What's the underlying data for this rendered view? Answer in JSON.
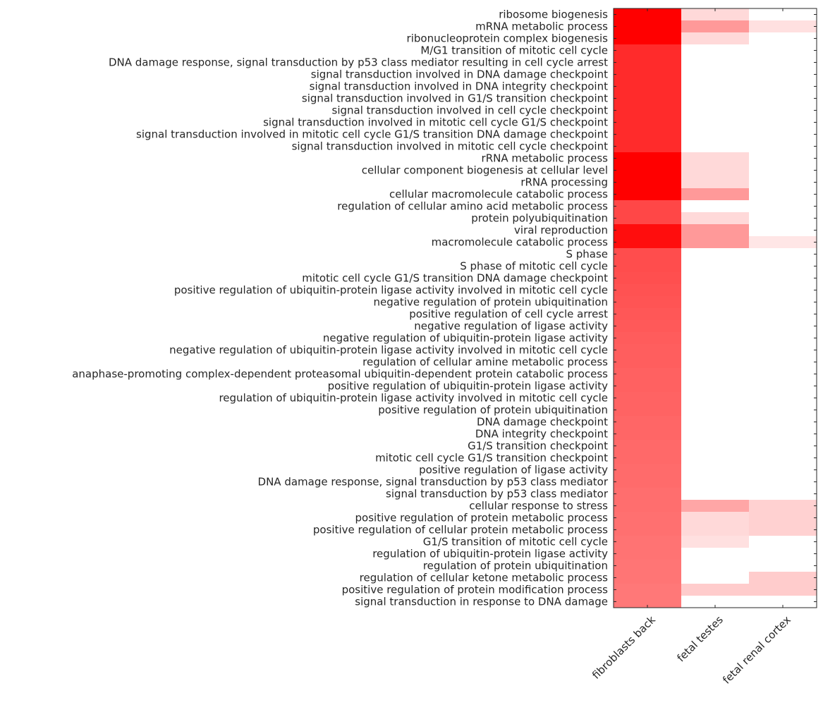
{
  "chart_data": {
    "type": "heatmap",
    "title": "",
    "xlabel": "",
    "ylabel": "",
    "colormap": {
      "low": "#ffffff",
      "high": "#ff0000"
    },
    "value_range": [
      0,
      1
    ],
    "grid": false,
    "columns": [
      "fibroblasts back",
      "fetal testes",
      "fetal renal cortex"
    ],
    "rows": [
      "ribosome biogenesis",
      "mRNA metabolic process",
      "ribonucleoprotein complex biogenesis",
      "M/G1 transition of mitotic cell cycle",
      "DNA damage response, signal transduction by p53 class mediator resulting in cell cycle arrest",
      "signal transduction involved in DNA damage checkpoint",
      "signal transduction involved in DNA integrity checkpoint",
      "signal transduction involved in G1/S transition checkpoint",
      "signal transduction involved in cell cycle checkpoint",
      "signal transduction involved in mitotic cell cycle G1/S checkpoint",
      "signal transduction involved in mitotic cell cycle G1/S transition DNA damage checkpoint",
      "signal transduction involved in mitotic cell cycle checkpoint",
      "rRNA metabolic process",
      "cellular component biogenesis at cellular level",
      "rRNA processing",
      "cellular macromolecule catabolic process",
      "regulation of cellular amino acid metabolic process",
      "protein polyubiquitination",
      "viral reproduction",
      "macromolecule catabolic process",
      "S phase",
      "S phase of mitotic cell cycle",
      "mitotic cell cycle G1/S transition DNA damage checkpoint",
      "positive regulation of ubiquitin-protein ligase activity involved in mitotic cell cycle",
      "negative regulation of protein ubiquitination",
      "positive regulation of cell cycle arrest",
      "negative regulation of ligase activity",
      "negative regulation of ubiquitin-protein ligase activity",
      "negative regulation of ubiquitin-protein ligase activity involved in mitotic cell cycle",
      "regulation of cellular amine metabolic process",
      "anaphase-promoting complex-dependent proteasomal ubiquitin-dependent protein catabolic process",
      "positive regulation of ubiquitin-protein ligase activity",
      "regulation of ubiquitin-protein ligase activity involved in mitotic cell cycle",
      "positive regulation of protein ubiquitination",
      "DNA damage checkpoint",
      "DNA integrity checkpoint",
      "G1/S transition checkpoint",
      "mitotic cell cycle G1/S transition checkpoint",
      "positive regulation of ligase activity",
      "DNA damage response, signal transduction by p53 class mediator",
      "signal transduction by p53 class mediator",
      "cellular response to stress",
      "positive regulation of protein metabolic process",
      "positive regulation of cellular protein metabolic process",
      "G1/S transition of mitotic cell cycle",
      "regulation of ubiquitin-protein ligase activity",
      "regulation of protein ubiquitination",
      "regulation of cellular ketone metabolic process",
      "positive regulation of protein modification process",
      "signal transduction in response to DNA damage"
    ],
    "values": [
      [
        1.0,
        0.15,
        0.0
      ],
      [
        1.0,
        0.4,
        0.12
      ],
      [
        1.0,
        0.15,
        0.0
      ],
      [
        0.83,
        0.0,
        0.0
      ],
      [
        0.83,
        0.0,
        0.0
      ],
      [
        0.83,
        0.0,
        0.0
      ],
      [
        0.83,
        0.0,
        0.0
      ],
      [
        0.83,
        0.0,
        0.0
      ],
      [
        0.83,
        0.0,
        0.0
      ],
      [
        0.83,
        0.0,
        0.0
      ],
      [
        0.83,
        0.0,
        0.0
      ],
      [
        0.83,
        0.0,
        0.0
      ],
      [
        1.0,
        0.15,
        0.0
      ],
      [
        1.0,
        0.15,
        0.0
      ],
      [
        1.0,
        0.15,
        0.0
      ],
      [
        1.0,
        0.4,
        0.0
      ],
      [
        0.72,
        0.0,
        0.0
      ],
      [
        0.72,
        0.15,
        0.0
      ],
      [
        0.95,
        0.4,
        0.0
      ],
      [
        0.95,
        0.4,
        0.1
      ],
      [
        0.7,
        0.0,
        0.0
      ],
      [
        0.7,
        0.0,
        0.0
      ],
      [
        0.69,
        0.0,
        0.0
      ],
      [
        0.68,
        0.0,
        0.0
      ],
      [
        0.67,
        0.0,
        0.0
      ],
      [
        0.66,
        0.0,
        0.0
      ],
      [
        0.65,
        0.0,
        0.0
      ],
      [
        0.64,
        0.0,
        0.0
      ],
      [
        0.63,
        0.0,
        0.0
      ],
      [
        0.63,
        0.0,
        0.0
      ],
      [
        0.62,
        0.0,
        0.0
      ],
      [
        0.62,
        0.0,
        0.0
      ],
      [
        0.61,
        0.0,
        0.0
      ],
      [
        0.61,
        0.0,
        0.0
      ],
      [
        0.6,
        0.0,
        0.0
      ],
      [
        0.6,
        0.0,
        0.0
      ],
      [
        0.59,
        0.0,
        0.0
      ],
      [
        0.59,
        0.0,
        0.0
      ],
      [
        0.58,
        0.0,
        0.0
      ],
      [
        0.58,
        0.0,
        0.0
      ],
      [
        0.57,
        0.0,
        0.0
      ],
      [
        0.57,
        0.35,
        0.18
      ],
      [
        0.56,
        0.15,
        0.18
      ],
      [
        0.56,
        0.15,
        0.18
      ],
      [
        0.55,
        0.12,
        0.0
      ],
      [
        0.55,
        0.0,
        0.0
      ],
      [
        0.54,
        0.0,
        0.0
      ],
      [
        0.54,
        0.0,
        0.2
      ],
      [
        0.53,
        0.2,
        0.2
      ],
      [
        0.53,
        0.0,
        0.0
      ]
    ]
  }
}
